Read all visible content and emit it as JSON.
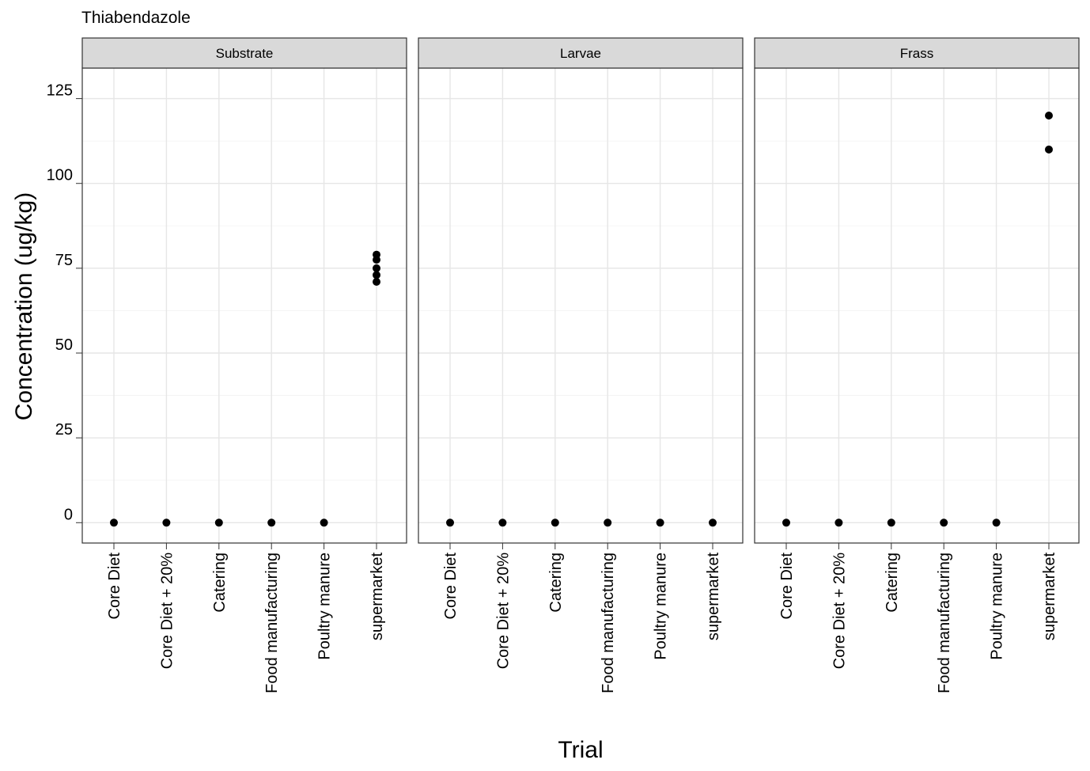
{
  "chart_data": {
    "type": "scatter",
    "title": "Thiabendazole",
    "xlabel": "Trial",
    "ylabel": "Concentration (ug/kg)",
    "ylim": [
      -6,
      134
    ],
    "yticks": [
      0,
      25,
      50,
      75,
      100,
      125
    ],
    "categories": [
      "Core Diet",
      "Core Diet + 20%",
      "Catering",
      "Food manufacturing",
      "Poultry manure",
      "supermarket"
    ],
    "grid": true,
    "panels": [
      {
        "name": "Substrate",
        "points": [
          {
            "category": "Core Diet",
            "y": 0
          },
          {
            "category": "Core Diet + 20%",
            "y": 0
          },
          {
            "category": "Catering",
            "y": 0
          },
          {
            "category": "Food manufacturing",
            "y": 0
          },
          {
            "category": "Poultry manure",
            "y": 0
          },
          {
            "category": "supermarket",
            "y": 79
          },
          {
            "category": "supermarket",
            "y": 77.5
          },
          {
            "category": "supermarket",
            "y": 75
          },
          {
            "category": "supermarket",
            "y": 73
          },
          {
            "category": "supermarket",
            "y": 71
          }
        ]
      },
      {
        "name": "Larvae",
        "points": [
          {
            "category": "Core Diet",
            "y": 0
          },
          {
            "category": "Core Diet + 20%",
            "y": 0
          },
          {
            "category": "Catering",
            "y": 0
          },
          {
            "category": "Food manufacturing",
            "y": 0
          },
          {
            "category": "Poultry manure",
            "y": 0
          },
          {
            "category": "supermarket",
            "y": 0
          }
        ]
      },
      {
        "name": "Frass",
        "points": [
          {
            "category": "Core Diet",
            "y": 0
          },
          {
            "category": "Core Diet + 20%",
            "y": 0
          },
          {
            "category": "Catering",
            "y": 0
          },
          {
            "category": "Food manufacturing",
            "y": 0
          },
          {
            "category": "Poultry manure",
            "y": 0
          },
          {
            "category": "supermarket",
            "y": 120
          },
          {
            "category": "supermarket",
            "y": 110
          }
        ]
      }
    ]
  },
  "colors": {
    "point": "#000000",
    "grid": "#e6e6e6",
    "strip_fill": "#d9d9d9",
    "panel_border": "#333333"
  }
}
